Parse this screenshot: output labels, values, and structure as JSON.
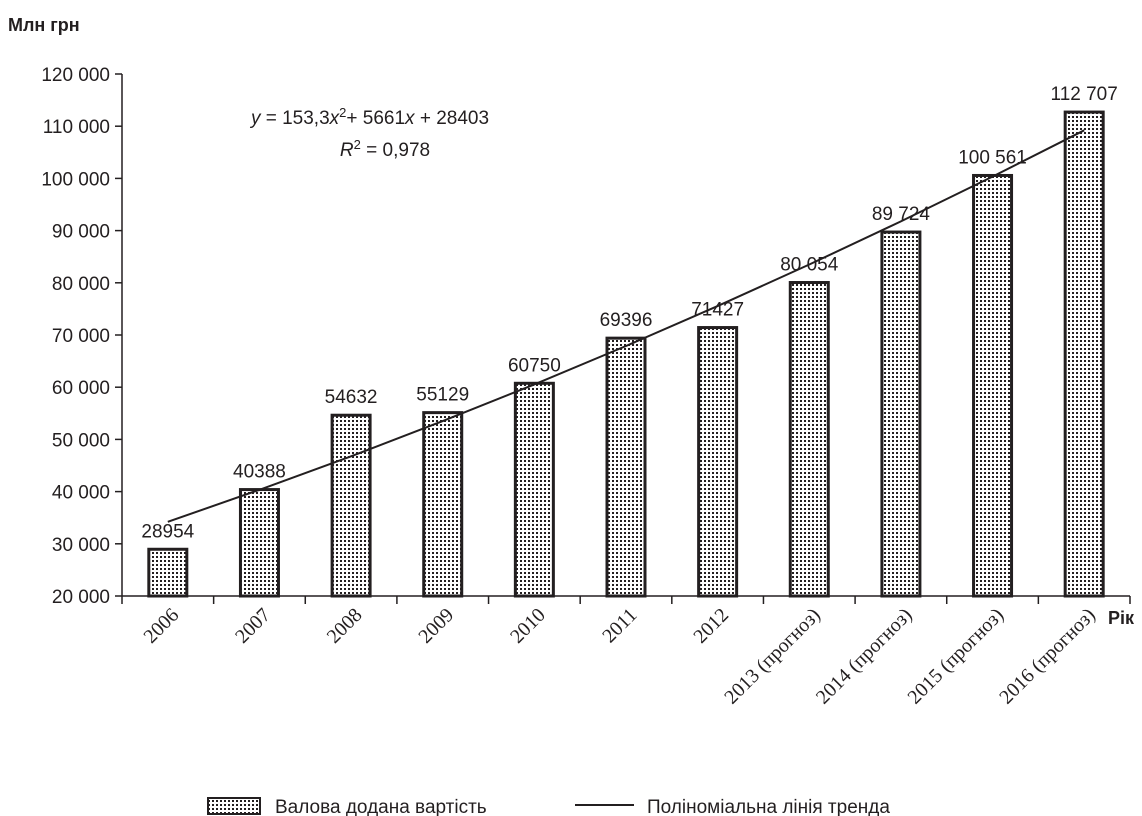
{
  "chart_data": {
    "type": "bar",
    "ylabel": "Млн грн",
    "xlabel": "Рік",
    "categories": [
      "2006",
      "2007",
      "2008",
      "2009",
      "2010",
      "2011",
      "2012",
      "2013 (прогноз)",
      "2014 (прогноз)",
      "2015 (прогноз)",
      "2016 (прогноз)"
    ],
    "series": [
      {
        "name": "Валова додана вартість",
        "values": [
          28954,
          40388,
          54632,
          55129,
          60750,
          69396,
          71427,
          80054,
          89724,
          100561,
          112707
        ],
        "labels": [
          "28954",
          "40388",
          "54632",
          "55129",
          "60750",
          "69396",
          "71427",
          "80 054",
          "89 724",
          "100 561",
          "112 707"
        ]
      }
    ],
    "trendline": {
      "name": "Поліноміальна лінія тренда",
      "type": "polynomial",
      "coefficients": [
        153.3,
        5661,
        28403
      ],
      "equation_parts": [
        "y",
        " = 153,3",
        "x",
        "2",
        "+ 5661",
        "x",
        " + 28403"
      ],
      "r2_parts": [
        "R",
        "2",
        " = 0,978"
      ]
    },
    "ylim": [
      20000,
      120000
    ],
    "yticks": [
      20000,
      30000,
      40000,
      50000,
      60000,
      70000,
      80000,
      90000,
      100000,
      110000,
      120000
    ],
    "ytick_labels": [
      "20 000",
      "30 000",
      "40 000",
      "50 000",
      "60 000",
      "70 000",
      "80 000",
      "90 000",
      "100 000",
      "110 000",
      "120 000"
    ],
    "legend_position": "bottom",
    "grid": false
  }
}
